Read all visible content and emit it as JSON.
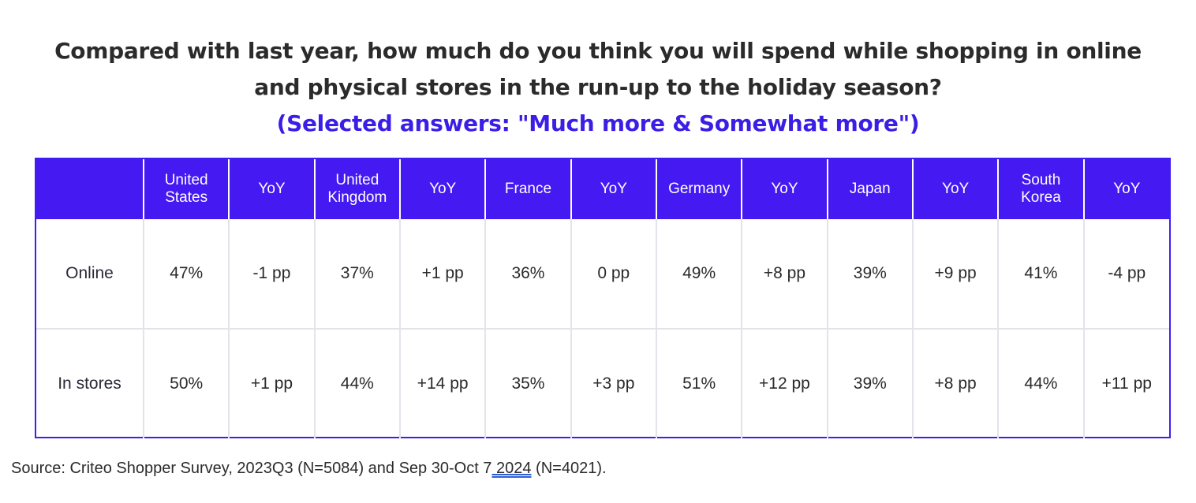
{
  "title": {
    "line1": "Compared with last year, how much do you think you will spend while shopping in online",
    "line2": "and physical stores in the run-up to the holiday season?",
    "subtitle": "(Selected answers: \"Much more & Somewhat more\")"
  },
  "chart_data": {
    "type": "table",
    "columns": [
      "",
      "United States",
      "YoY",
      "United Kingdom",
      "YoY",
      "France",
      "YoY",
      "Germany",
      "YoY",
      "Japan",
      "YoY",
      "South Korea",
      "YoY"
    ],
    "column_lines": [
      [
        ""
      ],
      [
        "United",
        "States"
      ],
      [
        "YoY"
      ],
      [
        "United",
        "Kingdom"
      ],
      [
        "YoY"
      ],
      [
        "France"
      ],
      [
        "YoY"
      ],
      [
        "Germany"
      ],
      [
        "YoY"
      ],
      [
        "Japan"
      ],
      [
        "YoY"
      ],
      [
        "South",
        "Korea"
      ],
      [
        "YoY"
      ]
    ],
    "rows": [
      [
        "Online",
        "47%",
        "-1 pp",
        "37%",
        "+1 pp",
        "36%",
        "0 pp",
        "49%",
        "+8 pp",
        "39%",
        "+9 pp",
        "41%",
        "-4 pp"
      ],
      [
        "In stores",
        "50%",
        "+1 pp",
        "44%",
        "+14 pp",
        "35%",
        "+3 pp",
        "51%",
        "+12 pp",
        "39%",
        "+8 pp",
        "44%",
        "+11 pp"
      ]
    ],
    "header_color": "#4419f2",
    "accent_color": "#3a1ee6"
  },
  "source": {
    "before": "Source: Criteo Shopper Survey, 2023Q3 (N=5084) and Sep 30-Oct 7",
    "underlined": " 2024",
    "after": " (N=4021)."
  }
}
